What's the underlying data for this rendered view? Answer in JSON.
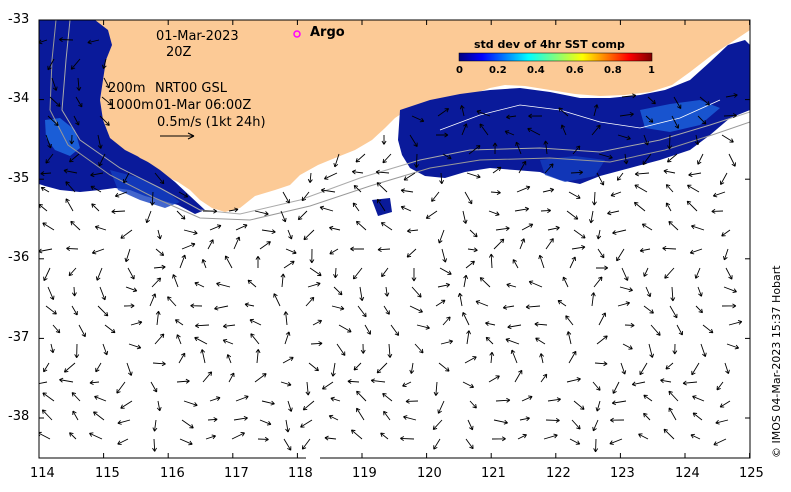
{
  "map": {
    "date": "01-Mar-2023",
    "time": "20Z",
    "contour_shallow": "200m",
    "contour_deep": "1000m",
    "product": "NRT00 GSL",
    "current_time": "01-Mar 06:00Z",
    "scale_arrow_label": "0.5m/s (1kt 24h)",
    "argo_label": "Argo",
    "credit": "© IMOS 04-Mar-2023 15:37 Hobart",
    "land_color": "#fcca96",
    "argo_color": "#ff00ff",
    "lon_range": [
      114,
      125
    ],
    "lat_range": [
      -38.5,
      -33
    ],
    "x_ticks": [
      "114",
      "115",
      "116",
      "117",
      "118",
      "119",
      "120",
      "121",
      "122",
      "123",
      "124",
      "125"
    ],
    "y_ticks": [
      "-33",
      "-34",
      "-35",
      "-36",
      "-37",
      "-38"
    ]
  },
  "colorbar": {
    "title": "std dev of 4hr SST comp",
    "ticks": [
      "0",
      "0.2",
      "0.4",
      "0.6",
      "0.8",
      "1"
    ],
    "colormap": [
      "#00007f",
      "#0000ff",
      "#007fff",
      "#00ffff",
      "#7fff7f",
      "#ffff00",
      "#ff7f00",
      "#ff0000",
      "#7f0000"
    ]
  }
}
